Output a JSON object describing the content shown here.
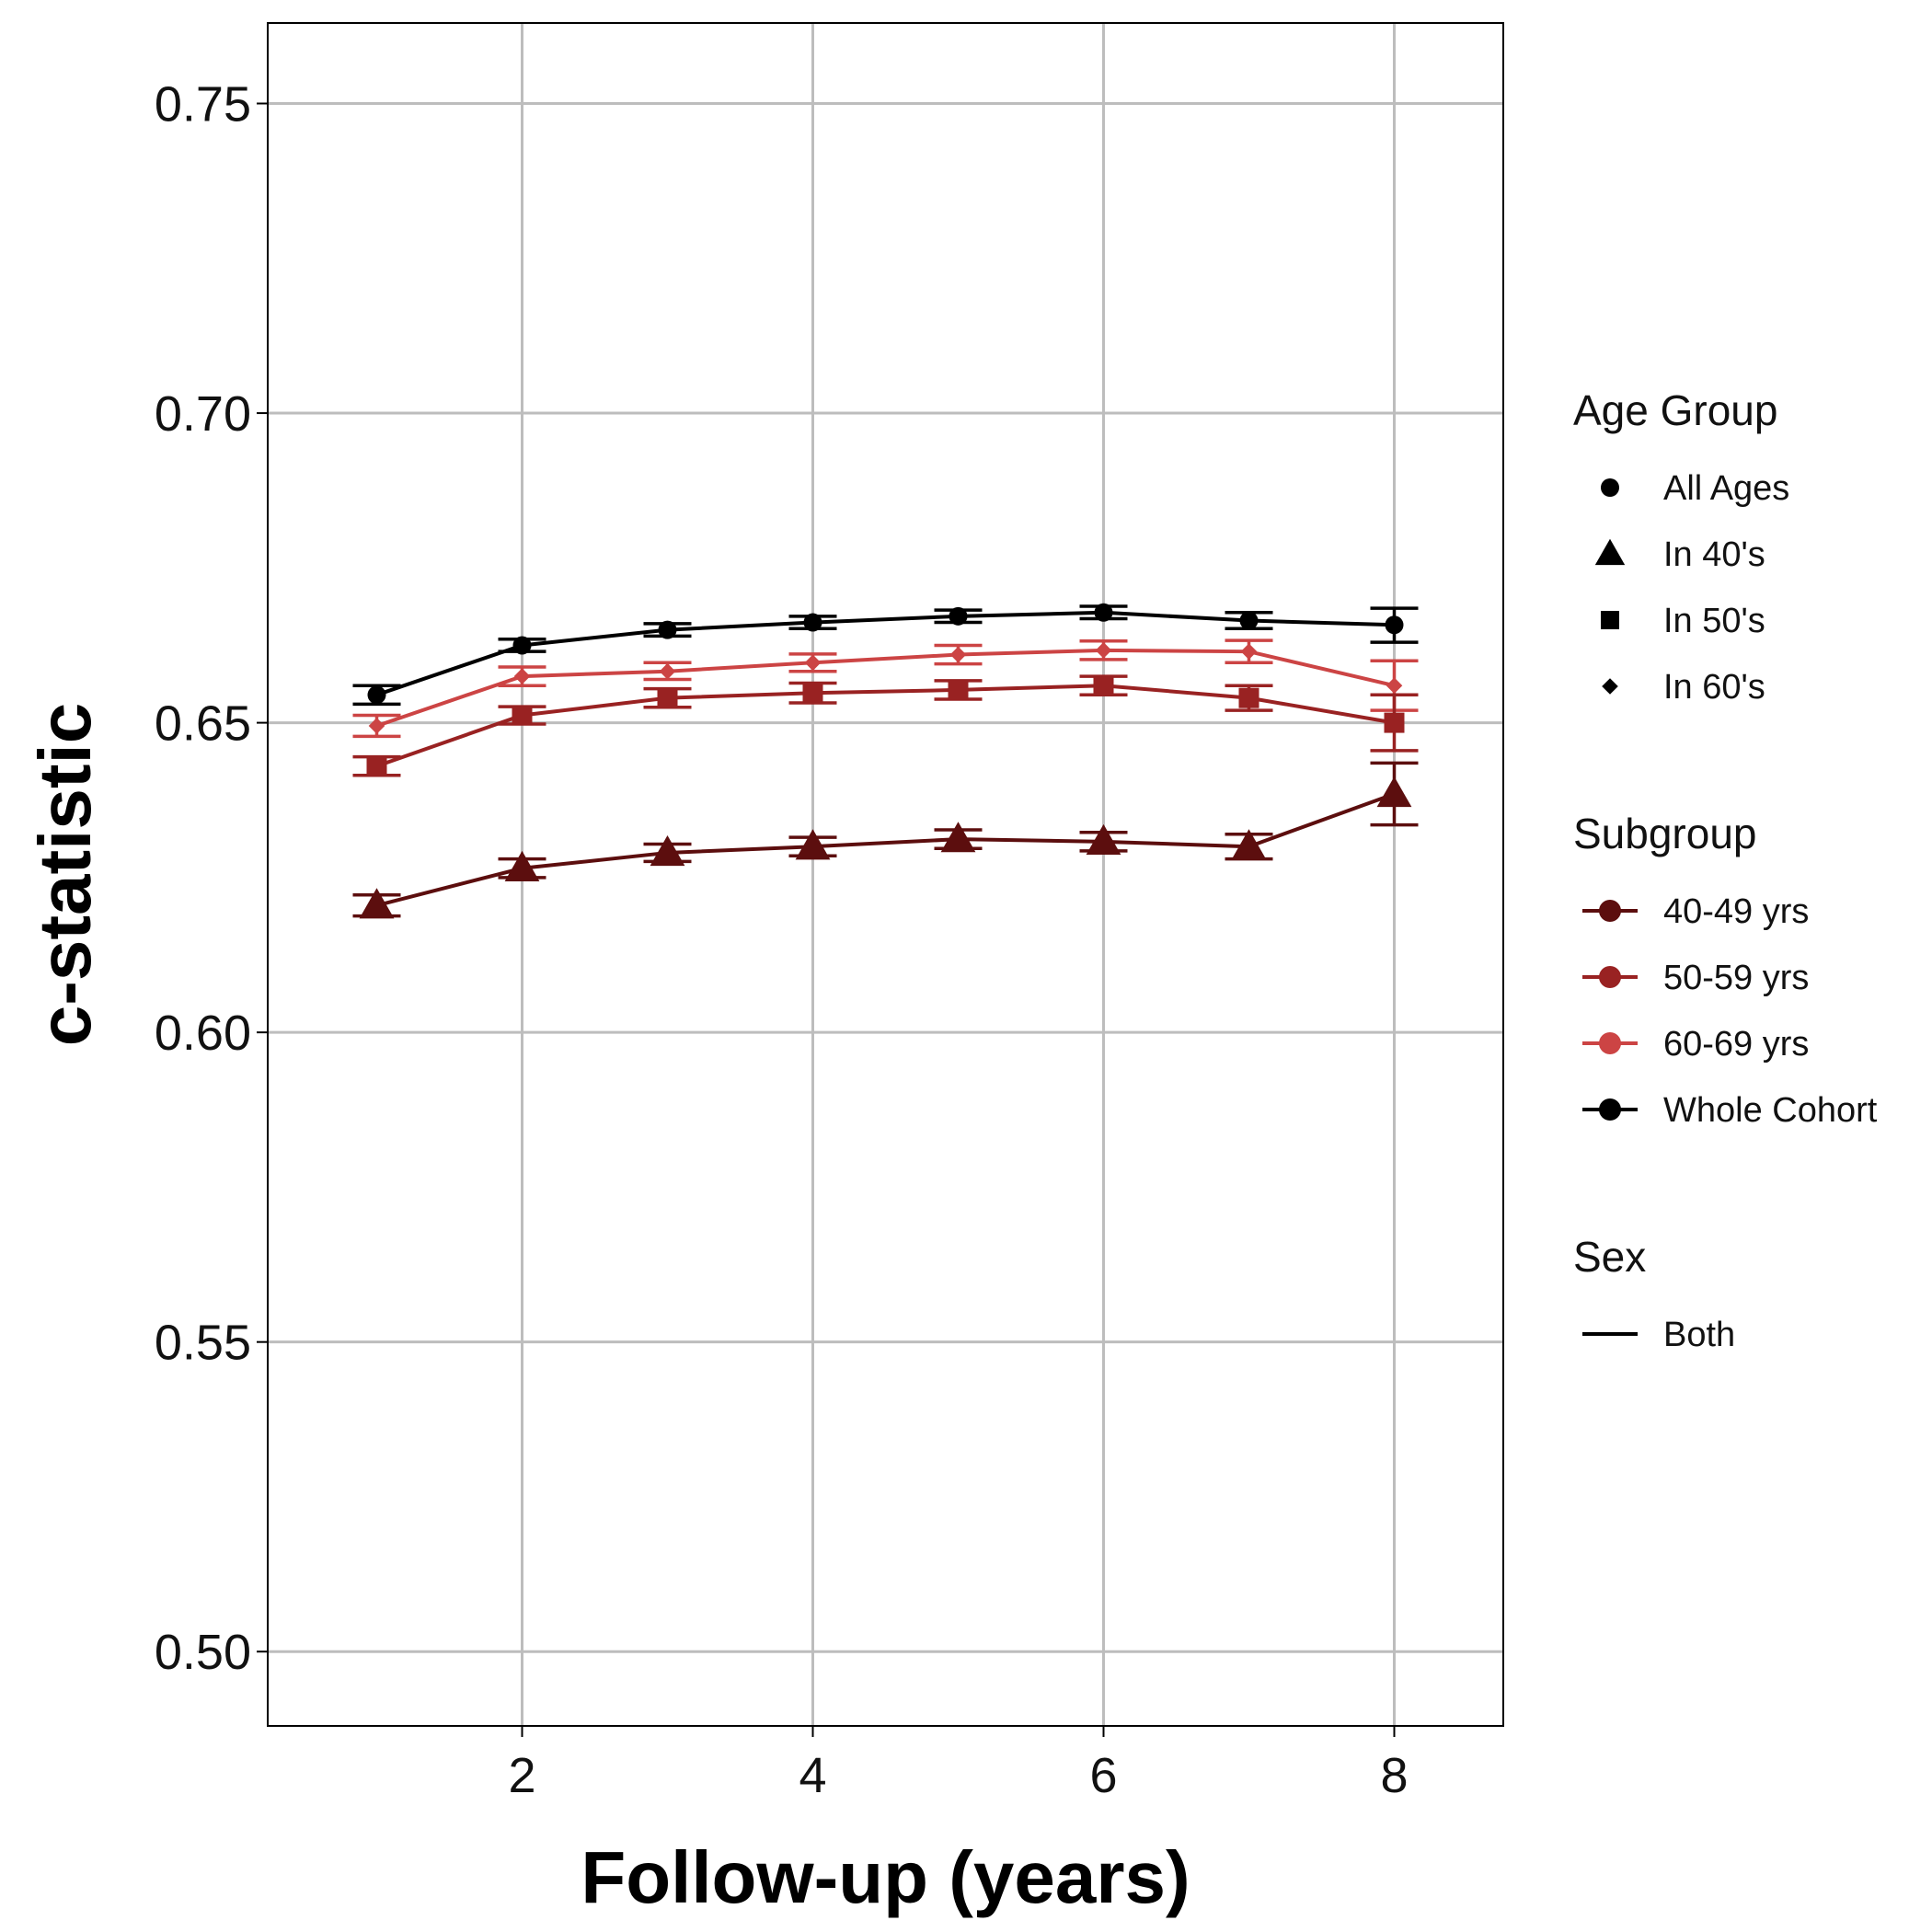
{
  "chart_data": {
    "type": "line",
    "xlabel": "Follow-up (years)",
    "ylabel": "c-statistic",
    "xlim": [
      0.25,
      8.75
    ],
    "ylim": [
      0.488,
      0.763
    ],
    "x_ticks": [
      2,
      4,
      6,
      8
    ],
    "y_ticks": [
      0.5,
      0.55,
      0.6,
      0.65,
      0.7,
      0.75
    ],
    "x_tick_labels": [
      "2",
      "4",
      "6",
      "8"
    ],
    "y_tick_labels": [
      "0.50",
      "0.55",
      "0.60",
      "0.65",
      "0.70",
      "0.75"
    ],
    "grid": true,
    "legend_position": "right",
    "x": [
      1,
      2,
      3,
      4,
      5,
      6,
      7,
      8
    ],
    "series": [
      {
        "name": "Whole Cohort",
        "age_group": "All Ages",
        "sex": "Both",
        "color": "#000000",
        "marker": "circle",
        "values": [
          0.6545,
          0.6625,
          0.665,
          0.6662,
          0.6672,
          0.6678,
          0.6665,
          0.6658
        ],
        "lower": [
          0.653,
          0.6615,
          0.664,
          0.6652,
          0.6662,
          0.6668,
          0.6652,
          0.663
        ],
        "upper": [
          0.656,
          0.6635,
          0.666,
          0.6672,
          0.6682,
          0.6688,
          0.6678,
          0.6685
        ]
      },
      {
        "name": "60-69 yrs",
        "age_group": "In 60's",
        "sex": "Both",
        "color": "#cc4444",
        "marker": "diamond",
        "values": [
          0.6495,
          0.6575,
          0.6583,
          0.6597,
          0.661,
          0.6617,
          0.6615,
          0.656
        ],
        "lower": [
          0.6478,
          0.656,
          0.657,
          0.6583,
          0.6595,
          0.6602,
          0.6597,
          0.652
        ],
        "upper": [
          0.6512,
          0.659,
          0.6597,
          0.6611,
          0.6625,
          0.6632,
          0.6633,
          0.66
        ]
      },
      {
        "name": "50-59 yrs",
        "age_group": "In 50's",
        "sex": "Both",
        "color": "#992222",
        "marker": "square",
        "values": [
          0.643,
          0.6512,
          0.654,
          0.6548,
          0.6553,
          0.656,
          0.654,
          0.65
        ],
        "lower": [
          0.6415,
          0.6498,
          0.6525,
          0.6532,
          0.6538,
          0.6545,
          0.652,
          0.6455
        ],
        "upper": [
          0.6445,
          0.6526,
          0.6555,
          0.6564,
          0.6568,
          0.6575,
          0.656,
          0.6545
        ]
      },
      {
        "name": "40-49 yrs",
        "age_group": "In 40's",
        "sex": "Both",
        "color": "#5c0e0e",
        "marker": "triangle",
        "values": [
          0.6205,
          0.6265,
          0.629,
          0.63,
          0.6312,
          0.6308,
          0.63,
          0.6385
        ],
        "lower": [
          0.6188,
          0.625,
          0.6276,
          0.6285,
          0.6297,
          0.6293,
          0.628,
          0.6335
        ],
        "upper": [
          0.6222,
          0.628,
          0.6304,
          0.6315,
          0.6327,
          0.6323,
          0.632,
          0.6435
        ]
      }
    ]
  },
  "legend": {
    "age_group": {
      "title": "Age Group",
      "items": [
        {
          "label": "All Ages",
          "marker": "circle"
        },
        {
          "label": "In 40's",
          "marker": "triangle"
        },
        {
          "label": "In 50's",
          "marker": "square"
        },
        {
          "label": "In 60's",
          "marker": "diamond"
        }
      ]
    },
    "subgroup": {
      "title": "Subgroup",
      "items": [
        {
          "label": "40-49 yrs",
          "color": "#5c0e0e"
        },
        {
          "label": "50-59 yrs",
          "color": "#992222"
        },
        {
          "label": "60-69 yrs",
          "color": "#cc4444"
        },
        {
          "label": "Whole Cohort",
          "color": "#000000"
        }
      ]
    },
    "sex": {
      "title": "Sex",
      "items": [
        {
          "label": "Both"
        }
      ]
    }
  }
}
